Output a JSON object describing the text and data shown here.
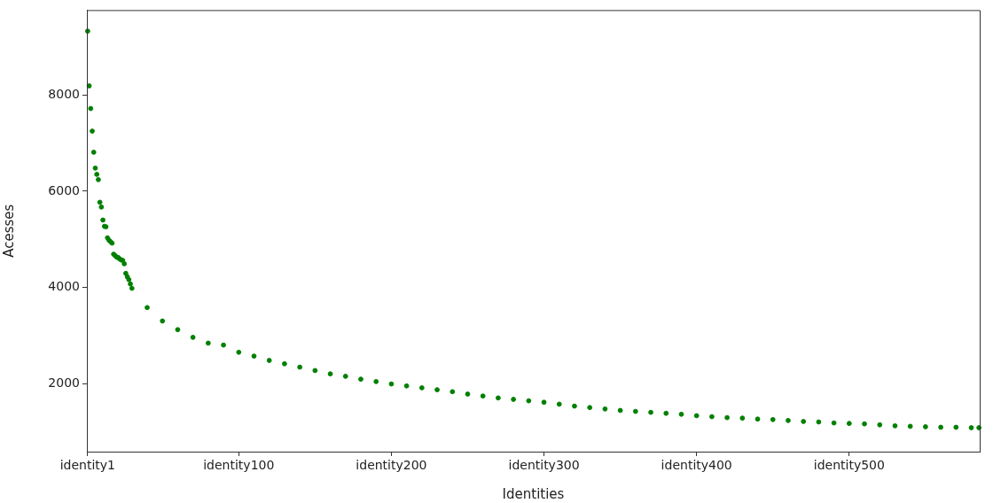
{
  "chart_data": {
    "type": "scatter",
    "xlabel": "Identities",
    "ylabel": "Acesses",
    "categories": [
      "identity1",
      null,
      null,
      null,
      null,
      null,
      null,
      null,
      null,
      null,
      null,
      null,
      null,
      null,
      null,
      null,
      null,
      null,
      null,
      null,
      null,
      null,
      null,
      null,
      null,
      null,
      null,
      null,
      null,
      null,
      null,
      null,
      null,
      null,
      null,
      null,
      null,
      null,
      null,
      null,
      null,
      null,
      null,
      null,
      null,
      null,
      null,
      null,
      null,
      null,
      null,
      null,
      null,
      null,
      null,
      null,
      null,
      null,
      null,
      null,
      null,
      null,
      null,
      null,
      null,
      null,
      null,
      null,
      null,
      null,
      null,
      null,
      null,
      null,
      null,
      null,
      null,
      null,
      null,
      null,
      null,
      null,
      null,
      null,
      null,
      null,
      null,
      null,
      null,
      null,
      null,
      null,
      null,
      null,
      null,
      null,
      null,
      null,
      null,
      "identity100",
      null,
      null,
      null,
      null,
      null,
      null,
      null,
      null,
      null,
      null,
      null,
      null,
      null,
      null,
      null,
      null,
      null,
      null,
      null,
      null,
      null,
      null,
      null,
      null,
      null,
      null,
      null,
      null,
      null,
      null,
      null,
      null,
      null,
      null,
      null,
      null,
      null,
      null,
      null,
      null,
      null,
      null,
      null,
      null,
      null,
      null,
      null,
      null,
      null,
      null,
      null,
      null,
      null,
      null,
      null,
      null,
      null,
      null,
      null,
      null,
      null,
      null,
      null,
      null,
      null,
      null,
      null,
      null,
      null,
      null,
      null,
      null,
      null,
      null,
      null,
      null,
      null,
      null,
      null,
      null,
      null,
      null,
      null,
      null,
      null,
      null,
      null,
      null,
      null,
      null,
      null,
      null,
      null,
      null,
      null,
      null,
      null,
      null,
      null,
      "identity200",
      null,
      null,
      null,
      null,
      null,
      null,
      null,
      null,
      null,
      null,
      null,
      null,
      null,
      null,
      null,
      null,
      null,
      null,
      null,
      null,
      null,
      null,
      null,
      null,
      null,
      null,
      null,
      null,
      null,
      null,
      null,
      null,
      null,
      null,
      null,
      null,
      null,
      null,
      null,
      null,
      null,
      null,
      null,
      null,
      null,
      null,
      null,
      null,
      null,
      null,
      null,
      null,
      null,
      null,
      null,
      null,
      null,
      null,
      null,
      null,
      null,
      null,
      null,
      null,
      null,
      null,
      null,
      null,
      null,
      null,
      null,
      null,
      null,
      null,
      null,
      null,
      null,
      null,
      null,
      null,
      null,
      null,
      null,
      null,
      null,
      null,
      null,
      null,
      null,
      null,
      null,
      null,
      null,
      null,
      null,
      null,
      null,
      null,
      null,
      "identity300",
      null,
      null,
      null,
      null,
      null,
      null,
      null,
      null,
      null,
      null,
      null,
      null,
      null,
      null,
      null,
      null,
      null,
      null,
      null,
      null,
      null,
      null,
      null,
      null,
      null,
      null,
      null,
      null,
      null,
      null,
      null,
      null,
      null,
      null,
      null,
      null,
      null,
      null,
      null,
      null,
      null,
      null,
      null,
      null,
      null,
      null,
      null,
      null,
      null,
      null,
      null,
      null,
      null,
      null,
      null,
      null,
      null,
      null,
      null,
      null,
      null,
      null,
      null,
      null,
      null,
      null,
      null,
      null,
      null,
      null,
      null,
      null,
      null,
      null,
      null,
      null,
      null,
      null,
      null,
      null,
      null,
      null,
      null,
      null,
      null,
      null,
      null,
      null,
      null,
      null,
      null,
      null,
      null,
      null,
      null,
      null,
      null,
      null,
      null,
      "identity400",
      null,
      null,
      null,
      null,
      null,
      null,
      null,
      null,
      null,
      null,
      null,
      null,
      null,
      null,
      null,
      null,
      null,
      null,
      null,
      null,
      null,
      null,
      null,
      null,
      null,
      null,
      null,
      null,
      null,
      null,
      null,
      null,
      null,
      null,
      null,
      null,
      null,
      null,
      null,
      null,
      null,
      null,
      null,
      null,
      null,
      null,
      null,
      null,
      null,
      null,
      null,
      null,
      null,
      null,
      null,
      null,
      null,
      null,
      null,
      null,
      null,
      null,
      null,
      null,
      null,
      null,
      null,
      null,
      null,
      null,
      null,
      null,
      null,
      null,
      null,
      null,
      null,
      null,
      null,
      null,
      null,
      null,
      null,
      null,
      null,
      null,
      null,
      null,
      null,
      null,
      null,
      null,
      null,
      null,
      null,
      null,
      null,
      null,
      null,
      "identity500",
      null,
      null,
      null,
      null,
      null,
      null,
      null,
      null,
      null,
      null,
      null,
      null,
      null,
      null,
      null,
      null,
      null,
      null,
      null,
      null,
      null,
      null,
      null,
      null,
      null,
      null,
      null,
      null,
      null,
      null,
      null,
      null,
      null,
      null,
      null,
      null,
      null,
      null,
      null,
      null,
      null,
      null,
      null,
      null,
      null,
      null,
      null,
      null,
      null,
      null,
      null,
      null,
      null,
      null,
      null,
      null,
      null,
      null,
      null,
      null,
      null,
      null,
      null,
      null,
      null,
      null,
      null,
      null,
      null,
      null,
      null,
      null,
      null,
      null,
      null,
      null,
      null,
      null,
      null,
      null,
      null,
      null,
      null,
      null,
      null
    ],
    "series": [
      {
        "color": "#008000",
        "values": [
          9330,
          8190,
          7720,
          7250,
          6810,
          6480,
          6350,
          6240,
          5770,
          5670,
          5400,
          5270,
          5260,
          5030,
          4980,
          4950,
          4920,
          4690,
          4660,
          4630,
          4620,
          4590,
          4570,
          4560,
          4490,
          4290,
          4220,
          4160,
          4070,
          3980,
          null,
          null,
          null,
          null,
          null,
          null,
          null,
          null,
          null,
          3580,
          null,
          null,
          null,
          null,
          null,
          null,
          null,
          null,
          null,
          3300,
          null,
          null,
          null,
          null,
          null,
          null,
          null,
          null,
          null,
          3120,
          null,
          null,
          null,
          null,
          null,
          null,
          null,
          null,
          null,
          2960,
          null,
          null,
          null,
          null,
          null,
          null,
          null,
          null,
          null,
          2840,
          null,
          null,
          null,
          null,
          null,
          null,
          null,
          null,
          null,
          2800,
          null,
          null,
          null,
          null,
          null,
          null,
          null,
          null,
          null,
          2650,
          null,
          null,
          null,
          null,
          null,
          null,
          null,
          null,
          null,
          2570,
          null,
          null,
          null,
          null,
          null,
          null,
          null,
          null,
          null,
          2480,
          null,
          null,
          null,
          null,
          null,
          null,
          null,
          null,
          null,
          2410,
          null,
          null,
          null,
          null,
          null,
          null,
          null,
          null,
          null,
          2340,
          null,
          null,
          null,
          null,
          null,
          null,
          null,
          null,
          null,
          2270,
          null,
          null,
          null,
          null,
          null,
          null,
          null,
          null,
          null,
          2200,
          null,
          null,
          null,
          null,
          null,
          null,
          null,
          null,
          null,
          2150,
          null,
          null,
          null,
          null,
          null,
          null,
          null,
          null,
          null,
          2090,
          null,
          null,
          null,
          null,
          null,
          null,
          null,
          null,
          null,
          2040,
          null,
          null,
          null,
          null,
          null,
          null,
          null,
          null,
          null,
          1990,
          null,
          null,
          null,
          null,
          null,
          null,
          null,
          null,
          null,
          1950,
          null,
          null,
          null,
          null,
          null,
          null,
          null,
          null,
          null,
          1910,
          null,
          null,
          null,
          null,
          null,
          null,
          null,
          null,
          null,
          1870,
          null,
          null,
          null,
          null,
          null,
          null,
          null,
          null,
          null,
          1830,
          null,
          null,
          null,
          null,
          null,
          null,
          null,
          null,
          null,
          1780,
          null,
          null,
          null,
          null,
          null,
          null,
          null,
          null,
          null,
          1740,
          null,
          null,
          null,
          null,
          null,
          null,
          null,
          null,
          null,
          1700,
          null,
          null,
          null,
          null,
          null,
          null,
          null,
          null,
          null,
          1670,
          null,
          null,
          null,
          null,
          null,
          null,
          null,
          null,
          null,
          1640,
          null,
          null,
          null,
          null,
          null,
          null,
          null,
          null,
          null,
          1610,
          null,
          null,
          null,
          null,
          null,
          null,
          null,
          null,
          null,
          1570,
          null,
          null,
          null,
          null,
          null,
          null,
          null,
          null,
          null,
          1530,
          null,
          null,
          null,
          null,
          null,
          null,
          null,
          null,
          null,
          1500,
          null,
          null,
          null,
          null,
          null,
          null,
          null,
          null,
          null,
          1470,
          null,
          null,
          null,
          null,
          null,
          null,
          null,
          null,
          null,
          1440,
          null,
          null,
          null,
          null,
          null,
          null,
          null,
          null,
          null,
          1420,
          null,
          null,
          null,
          null,
          null,
          null,
          null,
          null,
          null,
          1400,
          null,
          null,
          null,
          null,
          null,
          null,
          null,
          null,
          null,
          1380,
          null,
          null,
          null,
          null,
          null,
          null,
          null,
          null,
          null,
          1360,
          null,
          null,
          null,
          null,
          null,
          null,
          null,
          null,
          null,
          1330,
          null,
          null,
          null,
          null,
          null,
          null,
          null,
          null,
          null,
          1310,
          null,
          null,
          null,
          null,
          null,
          null,
          null,
          null,
          null,
          1290,
          null,
          null,
          null,
          null,
          null,
          null,
          null,
          null,
          null,
          1280,
          null,
          null,
          null,
          null,
          null,
          null,
          null,
          null,
          null,
          1260,
          null,
          null,
          null,
          null,
          null,
          null,
          null,
          null,
          null,
          1250,
          null,
          null,
          null,
          null,
          null,
          null,
          null,
          null,
          null,
          1230,
          null,
          null,
          null,
          null,
          null,
          null,
          null,
          null,
          null,
          1210,
          null,
          null,
          null,
          null,
          null,
          null,
          null,
          null,
          null,
          1200,
          null,
          null,
          null,
          null,
          null,
          null,
          null,
          null,
          null,
          1180,
          null,
          null,
          null,
          null,
          null,
          null,
          null,
          null,
          null,
          1170,
          null,
          null,
          null,
          null,
          null,
          null,
          null,
          null,
          null,
          1160,
          null,
          null,
          null,
          null,
          null,
          null,
          null,
          null,
          null,
          1140,
          null,
          null,
          null,
          null,
          null,
          null,
          null,
          null,
          null,
          1120,
          null,
          null,
          null,
          null,
          null,
          null,
          null,
          null,
          null,
          1110,
          null,
          null,
          null,
          null,
          null,
          null,
          null,
          null,
          null,
          1100,
          null,
          null,
          null,
          null,
          null,
          null,
          null,
          null,
          null,
          1090,
          null,
          null,
          null,
          null,
          null,
          null,
          null,
          null,
          null,
          1090,
          null,
          null,
          null,
          null,
          null,
          null,
          null,
          null,
          null,
          1080,
          null,
          null,
          null,
          null,
          1080
        ]
      }
    ],
    "ylim": [
      583,
      9767
    ],
    "yticks": [
      2000,
      4000,
      6000,
      8000
    ],
    "grid": false,
    "legend": false,
    "marker": "circle"
  }
}
